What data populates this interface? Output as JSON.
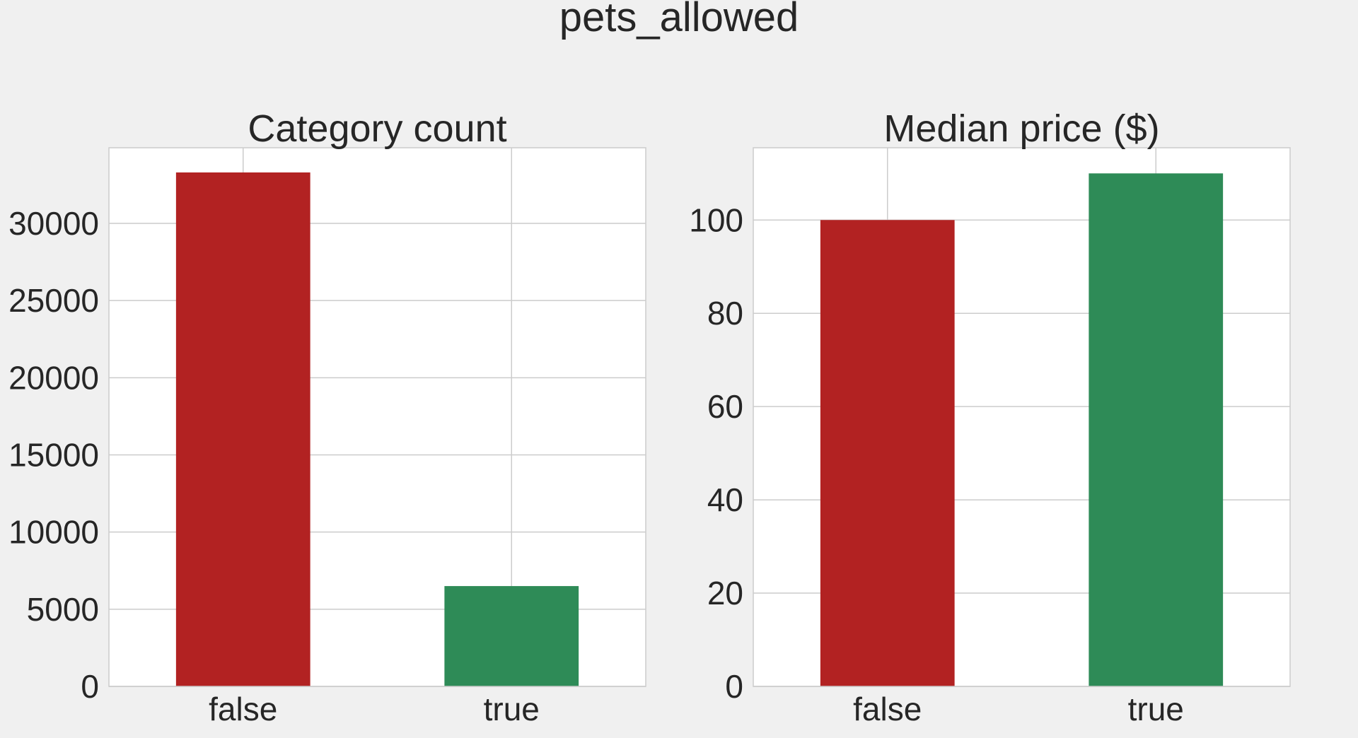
{
  "figure": {
    "suptitle": "pets_allowed",
    "background": "#f0f0f0"
  },
  "chart_data": [
    {
      "type": "bar",
      "title": "Category count",
      "xlabel": "",
      "ylabel": "",
      "categories": [
        "false",
        "true"
      ],
      "values": [
        33300,
        6500
      ],
      "colors": [
        "#b22222",
        "#2e8b57"
      ],
      "ylim": [
        0,
        34900
      ],
      "yticks": [
        0,
        5000,
        10000,
        15000,
        20000,
        25000,
        30000
      ],
      "grid": true
    },
    {
      "type": "bar",
      "title": "Median price ($)",
      "xlabel": "",
      "ylabel": "",
      "categories": [
        "false",
        "true"
      ],
      "values": [
        100,
        110
      ],
      "colors": [
        "#b22222",
        "#2e8b57"
      ],
      "ylim": [
        0,
        115.5
      ],
      "yticks": [
        0,
        20,
        40,
        60,
        80,
        100
      ],
      "grid": true
    }
  ]
}
